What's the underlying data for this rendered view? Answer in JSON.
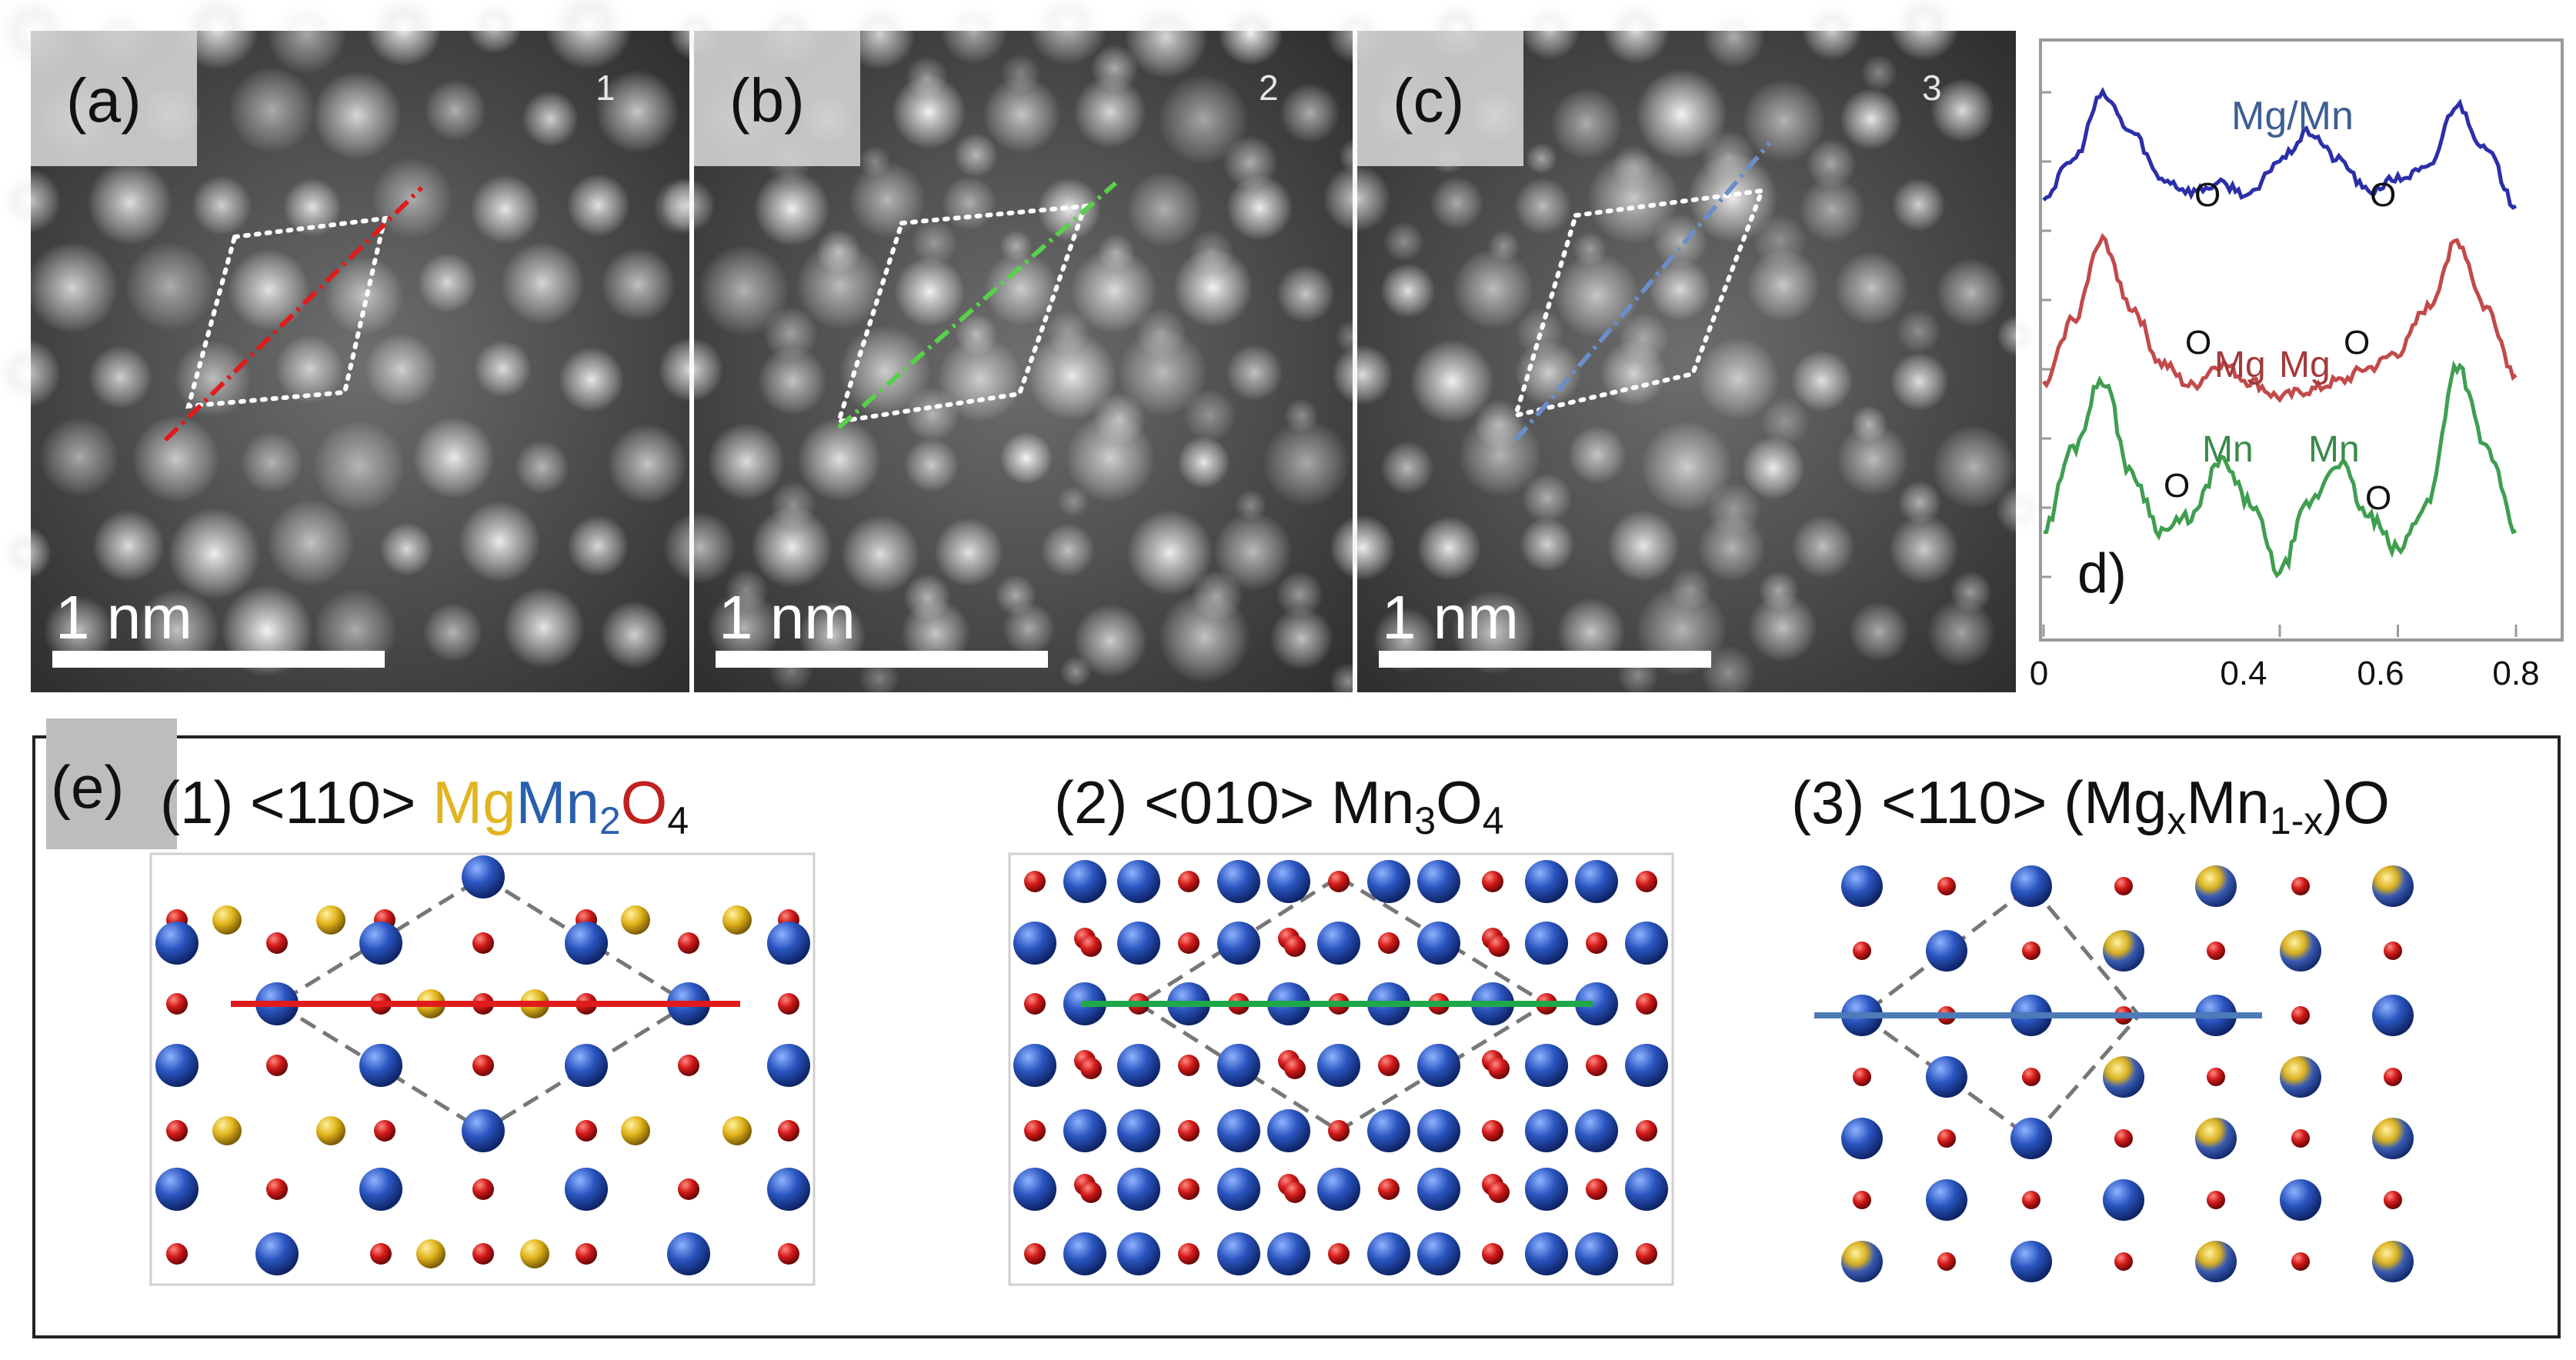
{
  "panels": [
    {
      "letter": "(a)",
      "number": "1",
      "scale_label": "1 nm"
    },
    {
      "letter": "(b)",
      "number": "2",
      "scale_label": "1 nm"
    },
    {
      "letter": "(c)",
      "number": "3",
      "scale_label": "1 nm"
    }
  ],
  "profile": {
    "panel_label": "d)",
    "peak_labels": {
      "blue": {
        "mgmn": "Mg/Mn",
        "o": "O"
      },
      "red": {
        "mg": "Mg",
        "o": "O"
      },
      "green": {
        "mn": "Mn",
        "o": "O"
      }
    },
    "axis_ticks": [
      "0",
      "0.4",
      "0.6",
      "0.8"
    ],
    "colors": {
      "blue": "#2b2fa8",
      "red": "#c24a4a",
      "green": "#3f9e4f"
    }
  },
  "chart_data": {
    "type": "line",
    "x_ticks": [
      0,
      0.4,
      0.6,
      0.8
    ],
    "xlim": [
      0,
      0.8
    ],
    "series": [
      {
        "color": "blue",
        "x": [
          0,
          0.05,
          0.1,
          0.15,
          0.2,
          0.25,
          0.3,
          0.35,
          0.4,
          0.45,
          0.5,
          0.55,
          0.6,
          0.65,
          0.7,
          0.75,
          0.8
        ],
        "y": [
          0.35,
          0.55,
          0.9,
          0.7,
          0.45,
          0.38,
          0.42,
          0.36,
          0.55,
          0.7,
          0.55,
          0.38,
          0.45,
          0.5,
          0.85,
          0.6,
          0.3
        ]
      },
      {
        "color": "red",
        "x": [
          0,
          0.05,
          0.1,
          0.15,
          0.2,
          0.25,
          0.3,
          0.35,
          0.4,
          0.45,
          0.5,
          0.55,
          0.6,
          0.65,
          0.7,
          0.75,
          0.8
        ],
        "y": [
          0.2,
          0.5,
          0.85,
          0.55,
          0.3,
          0.2,
          0.3,
          0.22,
          0.15,
          0.18,
          0.22,
          0.28,
          0.35,
          0.55,
          0.85,
          0.55,
          0.25
        ]
      },
      {
        "color": "green",
        "x": [
          0,
          0.05,
          0.1,
          0.15,
          0.2,
          0.25,
          0.3,
          0.35,
          0.4,
          0.45,
          0.5,
          0.55,
          0.6,
          0.65,
          0.7,
          0.75,
          0.8
        ],
        "y": [
          0.25,
          0.55,
          0.8,
          0.45,
          0.25,
          0.3,
          0.5,
          0.35,
          0.1,
          0.35,
          0.5,
          0.3,
          0.18,
          0.35,
          0.85,
          0.55,
          0.25
        ]
      }
    ]
  },
  "section_e": {
    "label": "(e)",
    "titles": [
      {
        "prefix": "(1) <110> ",
        "mg": "Mg",
        "mn": "Mn",
        "sub2": "2",
        "o": "O",
        "sub4": "4"
      },
      {
        "prefix": "(2) <010> Mn",
        "sub3": "3",
        "o": "O",
        "sub4": "4"
      },
      {
        "prefix": "(3) <110> (Mg",
        "subx": "x",
        "mn": "Mn",
        "sub1x": "1-x",
        "suffix": ")O"
      }
    ],
    "colors": {
      "mg": "#e2b520",
      "mn": "#2a5faf",
      "o": "#c0201e",
      "line1": "#e01b1b",
      "line2": "#1fa84a",
      "line3": "#4c7bb8"
    }
  }
}
